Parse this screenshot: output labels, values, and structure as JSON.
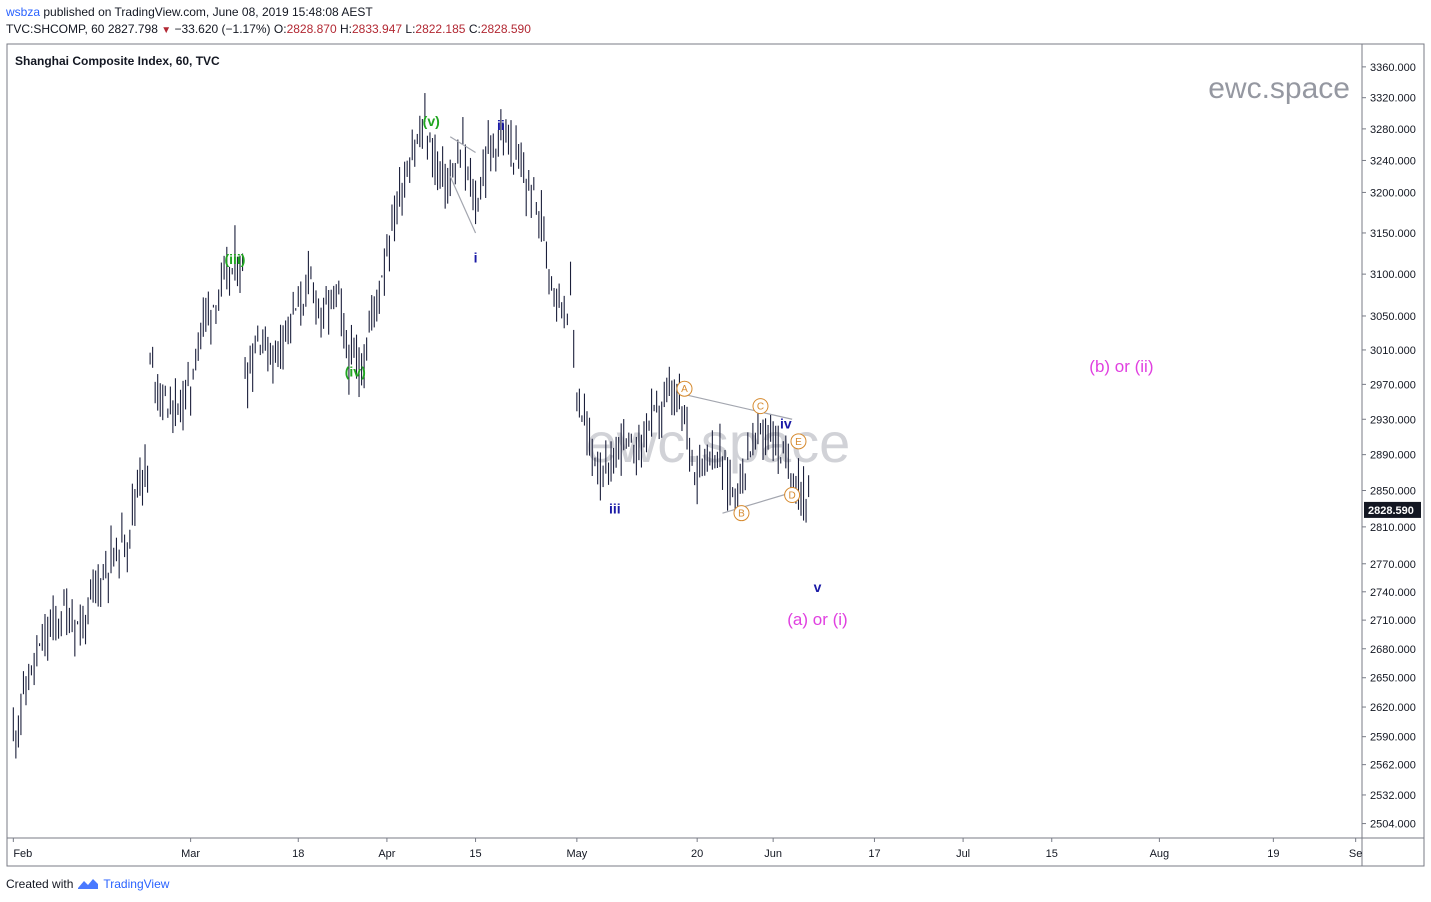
{
  "header": {
    "user": "wsbza",
    "published": "published on TradingView.com, June 08, 2019 15:48:08 AEST"
  },
  "ohlc": {
    "symbol": "TVC:SHCOMP, 60",
    "last": "2827.798",
    "change": "−33.620 (−1.17%)",
    "open_label": "O:",
    "open": "2828.870",
    "high_label": "H:",
    "high": "2833.947",
    "low_label": "L:",
    "low": "2822.185",
    "close_label": "C:",
    "close": "2828.590"
  },
  "watermark": {
    "corner": "ewc.space",
    "center": "ewc.space"
  },
  "footer": {
    "created": "Created with",
    "brand": "TradingView"
  },
  "colors": {
    "bars": "#1b1f3b",
    "green": "#21a621",
    "blue": "#1a1aa6",
    "orange": "#d68a2e",
    "magenta": "#e040e0",
    "price_tag": "#131722",
    "down": "#b22833"
  },
  "chart_data": {
    "type": "line",
    "title": "Shanghai Composite Index, 60, TVC",
    "last_price_tag": "2828.590",
    "y_scale": "log",
    "ylim": [
      2490,
      3390
    ],
    "y_ticks": [
      "3360.000",
      "3320.000",
      "3280.000",
      "3240.000",
      "3200.000",
      "3150.000",
      "3100.000",
      "3050.000",
      "3010.000",
      "2970.000",
      "2930.000",
      "2890.000",
      "2850.000",
      "2810.000",
      "2770.000",
      "2740.000",
      "2710.000",
      "2680.000",
      "2650.000",
      "2620.000",
      "2590.000",
      "2562.000",
      "2532.000",
      "2504.000"
    ],
    "x_ticks": [
      "Feb",
      "Mar",
      "18",
      "Apr",
      "15",
      "May",
      "20",
      "Jun",
      "17",
      "Jul",
      "15",
      "Aug",
      "19",
      "Se"
    ],
    "series": [
      {
        "x": [
          "2019-02-01",
          "2019-02-03",
          "2019-02-06",
          "2019-02-09",
          "2019-02-12",
          "2019-02-14",
          "2019-02-16",
          "2019-02-19",
          "2019-02-21",
          "2019-02-23",
          "2019-02-25",
          "2019-02-27",
          "2019-03-01",
          "2019-03-03",
          "2019-03-05",
          "2019-03-08",
          "2019-03-10",
          "2019-03-12",
          "2019-03-14",
          "2019-03-16",
          "2019-03-18",
          "2019-03-20",
          "2019-03-22",
          "2019-03-24",
          "2019-03-26",
          "2019-03-28",
          "2019-03-30",
          "2019-04-01",
          "2019-04-03",
          "2019-04-05",
          "2019-04-07",
          "2019-04-09",
          "2019-04-11",
          "2019-04-13",
          "2019-04-15",
          "2019-04-17",
          "2019-04-19",
          "2019-04-21",
          "2019-04-23",
          "2019-04-25",
          "2019-04-27",
          "2019-04-29",
          "2019-04-30",
          "2019-05-01",
          "2019-05-03",
          "2019-05-06",
          "2019-05-08",
          "2019-05-10",
          "2019-05-12",
          "2019-05-14",
          "2019-05-16",
          "2019-05-18",
          "2019-05-20",
          "2019-05-22",
          "2019-05-24",
          "2019-05-26",
          "2019-05-28",
          "2019-05-30",
          "2019-06-01",
          "2019-06-03",
          "2019-06-05",
          "2019-06-07"
        ],
        "y": [
          2590,
          2640,
          2690,
          2720,
          2700,
          2745,
          2770,
          2800,
          2870,
          2990,
          2950,
          2940,
          2970,
          3050,
          3070,
          3110,
          2985,
          3030,
          3000,
          3040,
          3060,
          3090,
          3050,
          3080,
          3000,
          2990,
          3060,
          3130,
          3200,
          3250,
          3280,
          3230,
          3210,
          3250,
          3180,
          3250,
          3270,
          3250,
          3210,
          3180,
          3100,
          3060,
          3070,
          2960,
          2900,
          2860,
          2910,
          2890,
          2920,
          2940,
          2960,
          2930,
          2870,
          2900,
          2880,
          2845,
          2890,
          2920,
          2910,
          2880,
          2860,
          2828
        ]
      }
    ],
    "annotations": [
      {
        "text": "(iii)",
        "x": "2019-03-08",
        "y": 3118,
        "color": "green"
      },
      {
        "text": "(iv)",
        "x": "2019-03-27",
        "y": 2985,
        "color": "green"
      },
      {
        "text": "(v)",
        "x": "2019-04-08",
        "y": 3290,
        "color": "green"
      },
      {
        "text": "i",
        "x": "2019-04-15",
        "y": 3120,
        "color": "blue"
      },
      {
        "text": "ii",
        "x": "2019-04-19",
        "y": 3285,
        "color": "blue"
      },
      {
        "text": "iii",
        "x": "2019-05-07",
        "y": 2830,
        "color": "blue"
      },
      {
        "text": "iv",
        "x": "2019-06-03",
        "y": 2925,
        "color": "blue"
      },
      {
        "text": "v",
        "x": "2019-06-08",
        "y": 2745,
        "color": "blue"
      },
      {
        "text": "A",
        "x": "2019-05-18",
        "y": 2965,
        "color": "orange",
        "circle": true
      },
      {
        "text": "B",
        "x": "2019-05-27",
        "y": 2825,
        "color": "orange",
        "circle": true
      },
      {
        "text": "C",
        "x": "2019-05-30",
        "y": 2945,
        "color": "orange",
        "circle": true
      },
      {
        "text": "D",
        "x": "2019-06-04",
        "y": 2845,
        "color": "orange",
        "circle": true
      },
      {
        "text": "E",
        "x": "2019-06-05",
        "y": 2905,
        "color": "orange",
        "circle": true
      },
      {
        "text": "(a) or (i)",
        "x": "2019-06-08",
        "y": 2710,
        "color": "magenta"
      },
      {
        "text": "(b) or (ii)",
        "x": "2019-07-26",
        "y": 2990,
        "color": "magenta"
      }
    ],
    "trendlines": [
      {
        "from": {
          "x": "2019-04-11",
          "y": 3270
        },
        "to": {
          "x": "2019-04-15",
          "y": 3250
        }
      },
      {
        "from": {
          "x": "2019-04-11",
          "y": 3220
        },
        "to": {
          "x": "2019-04-15",
          "y": 3150
        }
      },
      {
        "from": {
          "x": "2019-05-17",
          "y": 2960
        },
        "to": {
          "x": "2019-06-04",
          "y": 2930
        }
      },
      {
        "from": {
          "x": "2019-05-24",
          "y": 2825
        },
        "to": {
          "x": "2019-06-05",
          "y": 2850
        }
      }
    ],
    "grid": false,
    "legend": "top-left"
  }
}
